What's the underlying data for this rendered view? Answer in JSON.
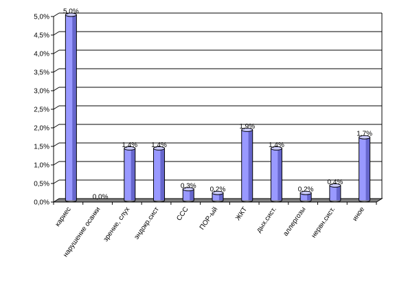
{
  "chart_data": {
    "type": "bar",
    "categories": [
      "кариес",
      "нарушение осанки",
      "зрение, слух",
      "эндокр.сист",
      "ССС",
      "ПОР-ый",
      "ЖКТ",
      "дых.сист.",
      "аллергозы",
      "нервн.сист.",
      "иное"
    ],
    "values": [
      5.0,
      0.0,
      1.4,
      1.4,
      0.3,
      0.2,
      1.9,
      1.4,
      0.2,
      0.4,
      1.7
    ],
    "data_labels": [
      "5,0%",
      "0,0%",
      "1,4%",
      "1,4%",
      "0,3%",
      "0,2%",
      "1,9%",
      "1,4%",
      "0,2%",
      "0,4%",
      "1,7%"
    ],
    "y_ticks": [
      "0,0%",
      "0,5%",
      "1,0%",
      "1,5%",
      "2,0%",
      "2,5%",
      "3,0%",
      "3,5%",
      "4,0%",
      "4,5%",
      "5,0%"
    ],
    "ylim": [
      0,
      5.0
    ],
    "title": "",
    "xlabel": "",
    "ylabel": "",
    "grid": true,
    "legend": "none",
    "bar_style": "3d-cylinder",
    "colors": {
      "bar_face": "#9999ff",
      "bar_side": "#6666cc",
      "bar_top": "#ccccff",
      "bar_outline": "#000000",
      "floor": "#808080",
      "grid": "#000000",
      "background": "#ffffff"
    }
  }
}
